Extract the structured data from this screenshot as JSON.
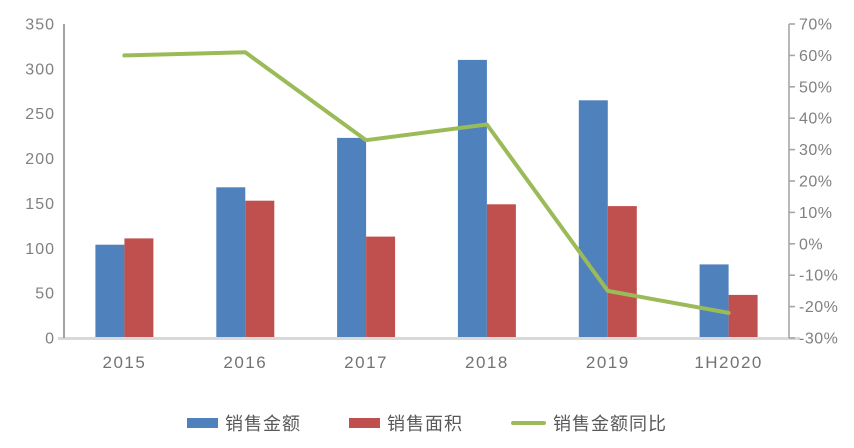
{
  "chart_data": {
    "type": "bar+line",
    "title": "",
    "categories": [
      "2015",
      "2016",
      "2017",
      "2018",
      "2019",
      "1H2020"
    ],
    "series": [
      {
        "key": "sales-amount",
        "name": "销售金额",
        "type": "bar",
        "axis": "left",
        "color": "#4F81BD",
        "values": [
          104,
          168,
          223,
          310,
          265,
          82
        ]
      },
      {
        "key": "sales-area",
        "name": "销售面积",
        "type": "bar",
        "axis": "left",
        "color": "#C0504D",
        "values": [
          111,
          153,
          113,
          149,
          147,
          48
        ]
      },
      {
        "key": "sales-amount-yoy",
        "name": "销售金额同比",
        "type": "line",
        "axis": "right",
        "color": "#9BBB59",
        "values": [
          60,
          61,
          33,
          38,
          -15,
          -22
        ]
      }
    ],
    "left_axis": {
      "min": 0,
      "max": 350,
      "step": 50,
      "tick_labels": [
        "0",
        "50",
        "100",
        "150",
        "200",
        "250",
        "300",
        "350"
      ],
      "label_color": "#808080",
      "line_color": "#8C8C8C"
    },
    "right_axis": {
      "min": -30,
      "max": 70,
      "step": 10,
      "tick_labels": [
        "-30%",
        "-20%",
        "-10%",
        "0%",
        "10%",
        "20%",
        "30%",
        "40%",
        "50%",
        "60%",
        "70%"
      ],
      "label_color": "#808080",
      "line_color": "#A6A6A6"
    },
    "x_axis": {
      "label_color": "#737373",
      "baseline_color": "#D9D9D9"
    },
    "grid": false,
    "legend_position": "bottom"
  }
}
